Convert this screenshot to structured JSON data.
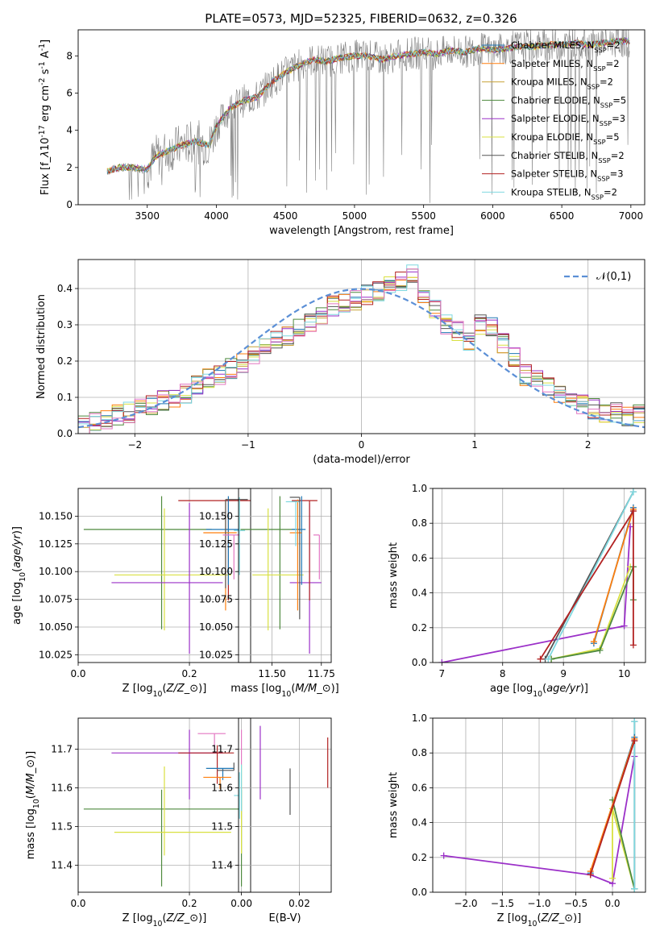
{
  "chart_data": [
    {
      "id": "spectrum",
      "type": "line",
      "title": "PLATE=0573, MJD=52325, FIBERID=0632, z=0.326",
      "xlabel": "wavelength [Angstrom, rest frame]",
      "ylabel": "Flux [f$_\\lambda$10$^{-17}$ erg cm$^{-2}$ s$^{-1}$ A$^{-1}$]",
      "xlim": [
        3000,
        7100
      ],
      "ylim": [
        0,
        9.4
      ],
      "xticks": [
        3500,
        4000,
        4500,
        5000,
        5500,
        6000,
        6500,
        7000
      ],
      "yticks": [
        0,
        2,
        4,
        6,
        8
      ],
      "grid": false,
      "legend_position": "top-right",
      "legend": [
        {
          "name": "Chabrier MILES, N$_{SSP}$=2",
          "color": "#1f77b4"
        },
        {
          "name": "Salpeter MILES, N$_{SSP}$=2",
          "color": "#ff7f0e"
        },
        {
          "name": "Kroupa MILES, N$_{SSP}$=2",
          "color": "#c8a23a"
        },
        {
          "name": "Chabrier ELODIE, N$_{SSP}$=5",
          "color": "#4e8a3e"
        },
        {
          "name": "Salpeter ELODIE, N$_{SSP}$=3",
          "color": "#9b30c8"
        },
        {
          "name": "Kroupa ELODIE, N$_{SSP}$=5",
          "color": "#d8e040"
        },
        {
          "name": "Chabrier STELIB, N$_{SSP}$=2",
          "color": "#555555"
        },
        {
          "name": "Salpeter STELIB, N$_{SSP}$=3",
          "color": "#b22222"
        },
        {
          "name": "Kroupa STELIB, N$_{SSP}$=2",
          "color": "#7fd8e0"
        }
      ],
      "observed_color": "#808080",
      "model_points": [
        [
          3210,
          1.8
        ],
        [
          3300,
          2.0
        ],
        [
          3400,
          2.0
        ],
        [
          3500,
          1.9
        ],
        [
          3560,
          2.6
        ],
        [
          3650,
          2.9
        ],
        [
          3750,
          3.2
        ],
        [
          3850,
          3.4
        ],
        [
          3950,
          3.2
        ],
        [
          4000,
          4.2
        ],
        [
          4100,
          5.2
        ],
        [
          4200,
          5.6
        ],
        [
          4300,
          5.8
        ],
        [
          4400,
          6.6
        ],
        [
          4500,
          7.1
        ],
        [
          4600,
          7.5
        ],
        [
          4700,
          7.8
        ],
        [
          4800,
          7.7
        ],
        [
          4900,
          7.9
        ],
        [
          5000,
          8.0
        ],
        [
          5100,
          8.0
        ],
        [
          5200,
          7.8
        ],
        [
          5300,
          8.0
        ],
        [
          5400,
          8.1
        ],
        [
          5500,
          8.2
        ],
        [
          5600,
          8.1
        ],
        [
          5700,
          8.3
        ],
        [
          5800,
          8.2
        ],
        [
          5900,
          8.4
        ],
        [
          6000,
          8.3
        ],
        [
          6100,
          8.4
        ],
        [
          6200,
          8.5
        ],
        [
          6300,
          8.5
        ],
        [
          6400,
          8.6
        ],
        [
          6500,
          8.6
        ],
        [
          6600,
          8.7
        ],
        [
          6700,
          8.6
        ],
        [
          6800,
          8.7
        ],
        [
          6900,
          8.8
        ],
        [
          6990,
          8.8
        ]
      ]
    },
    {
      "id": "residuals",
      "type": "histogram",
      "xlabel": "(data-model)/error",
      "ylabel": "Normed distribution",
      "xlim": [
        -2.5,
        2.5
      ],
      "ylim": [
        0,
        0.48
      ],
      "xticks": [
        -2,
        -1,
        0,
        1,
        2
      ],
      "yticks": [
        0.0,
        0.1,
        0.2,
        0.3,
        0.4
      ],
      "grid": true,
      "legend_position": "top-right",
      "legend": [
        {
          "name": "$\\mathcal{N}(0,1)$",
          "color": "#5b8fd6"
        }
      ],
      "bin_edges_range": [
        -2.5,
        2.5
      ],
      "bins": 50,
      "histogram_values": [
        0.02,
        0.03,
        0.04,
        0.05,
        0.06,
        0.07,
        0.08,
        0.09,
        0.1,
        0.11,
        0.13,
        0.15,
        0.16,
        0.18,
        0.19,
        0.22,
        0.24,
        0.26,
        0.27,
        0.29,
        0.31,
        0.33,
        0.35,
        0.36,
        0.37,
        0.38,
        0.39,
        0.41,
        0.42,
        0.44,
        0.38,
        0.34,
        0.3,
        0.28,
        0.26,
        0.3,
        0.29,
        0.25,
        0.21,
        0.16,
        0.15,
        0.13,
        0.11,
        0.09,
        0.08,
        0.07,
        0.06,
        0.06,
        0.05,
        0.05
      ]
    },
    {
      "id": "age-vs-Z",
      "type": "errorbar",
      "xlabel": "Z [log$_{10}$($Z/Z_\\odot$)]",
      "ylabel": "age  [log$_{10}$($age/yr$)]",
      "xlim": [
        0.0,
        0.31
      ],
      "ylim": [
        10.018,
        10.175
      ],
      "xticks": [
        0.0,
        0.2
      ],
      "yticks": [
        10.025,
        10.05,
        10.075,
        10.1,
        10.125,
        10.15
      ],
      "grid": true,
      "points": [
        {
          "x": 0.15,
          "y": 10.138,
          "xerr": [
            0.14,
            0.09
          ],
          "yerr": [
            0.09,
            0.03
          ],
          "color": "#4e8a3e"
        },
        {
          "x": 0.155,
          "y": 10.097,
          "xerr": [
            0.09,
            0.12
          ],
          "yerr": [
            0.05,
            0.06
          ],
          "color": "#d8e040"
        },
        {
          "x": 0.2,
          "y": 10.09,
          "xerr": [
            0.14,
            0.06
          ],
          "yerr": [
            0.064,
            0.072
          ],
          "color": "#9b30c8"
        },
        {
          "x": 0.27,
          "y": 10.164,
          "xerr": [
            0.09,
            0.04
          ],
          "yerr": [
            0.09,
            0.0
          ],
          "color": "#b22222"
        },
        {
          "x": 0.27,
          "y": 10.138,
          "xerr": [
            0.04,
            0.02
          ],
          "yerr": [
            0.05,
            0.03
          ],
          "color": "#1f77b4"
        },
        {
          "x": 0.265,
          "y": 10.135,
          "xerr": [
            0.04,
            0.02
          ],
          "yerr": [
            0.07,
            0.03
          ],
          "color": "#ff7f0e"
        },
        {
          "x": 0.29,
          "y": 10.137,
          "xerr": [
            0.01,
            0.01
          ],
          "yerr": [
            0.04,
            0.03
          ],
          "color": "#7fd8e0"
        },
        {
          "x": 0.265,
          "y": 10.165,
          "xerr": [
            0.0,
            0.04
          ],
          "yerr": [
            0.08,
            0.0
          ],
          "color": "#555555"
        },
        {
          "x": 0.28,
          "y": 10.133,
          "xerr": [
            0.02,
            0.01
          ],
          "yerr": [
            0.04,
            0.0
          ],
          "color": "#e377c2"
        }
      ]
    },
    {
      "id": "age-vs-mass",
      "type": "errorbar",
      "xlabel": "mass [log$_{10}$($M/M_\\odot$)]",
      "ylabel": "",
      "xlim": [
        11.33,
        11.8
      ],
      "ylim": [
        10.018,
        10.175
      ],
      "xticks": [
        11.5,
        11.75
      ],
      "yticks": [
        10.025,
        10.05,
        10.075,
        10.1,
        10.125,
        10.15
      ],
      "grid": true,
      "points": [
        {
          "x": 11.54,
          "y": 10.138,
          "xerr": [
            0.2,
            0.1
          ],
          "yerr": [
            0.09,
            0.03
          ],
          "color": "#4e8a3e"
        },
        {
          "x": 11.48,
          "y": 10.097,
          "xerr": [
            0.08,
            0.18
          ],
          "yerr": [
            0.05,
            0.06
          ],
          "color": "#d8e040"
        },
        {
          "x": 11.69,
          "y": 10.09,
          "xerr": [
            0.1,
            0.06
          ],
          "yerr": [
            0.064,
            0.072
          ],
          "color": "#9b30c8"
        },
        {
          "x": 11.69,
          "y": 10.164,
          "xerr": [
            0.09,
            0.04
          ],
          "yerr": [
            0.09,
            0.0
          ],
          "color": "#b22222"
        },
        {
          "x": 11.65,
          "y": 10.138,
          "xerr": [
            0.05,
            0.02
          ],
          "yerr": [
            0.05,
            0.03
          ],
          "color": "#1f77b4"
        },
        {
          "x": 11.63,
          "y": 10.135,
          "xerr": [
            0.04,
            0.02
          ],
          "yerr": [
            0.07,
            0.03
          ],
          "color": "#ff7f0e"
        },
        {
          "x": 11.62,
          "y": 10.163,
          "xerr": [
            0.05,
            0.02
          ],
          "yerr": [
            0.04,
            0.0
          ],
          "color": "#7fd8e0"
        },
        {
          "x": 11.64,
          "y": 10.167,
          "xerr": [
            0.05,
            0.0
          ],
          "yerr": [
            0.11,
            0.0
          ],
          "color": "#555555"
        },
        {
          "x": 11.74,
          "y": 10.133,
          "xerr": [
            0.03,
            0.0
          ],
          "yerr": [
            0.04,
            0.0
          ],
          "color": "#e377c2"
        }
      ]
    },
    {
      "id": "massweight-vs-age",
      "type": "line",
      "xlabel": "age  [log$_{10}$($age/yr$)]",
      "ylabel": "mass weight",
      "xlim": [
        6.85,
        10.35
      ],
      "ylim": [
        0.0,
        1.0
      ],
      "xticks": [
        7,
        8,
        9,
        10
      ],
      "yticks": [
        0.0,
        0.2,
        0.4,
        0.6,
        0.8,
        1.0
      ],
      "grid": true,
      "series": [
        {
          "color": "#9b30c8",
          "points": [
            [
              7.0,
              0.0
            ],
            [
              10.0,
              0.21
            ],
            [
              10.1,
              0.78
            ]
          ]
        },
        {
          "color": "#d8e040",
          "points": [
            [
              8.8,
              0.02
            ],
            [
              9.6,
              0.08
            ],
            [
              10.1,
              0.55
            ]
          ]
        },
        {
          "color": "#4e8a3e",
          "points": [
            [
              8.8,
              0.02
            ],
            [
              9.6,
              0.07
            ],
            [
              10.15,
              0.55
            ],
            [
              10.15,
              0.36
            ]
          ]
        },
        {
          "color": "#555555",
          "points": [
            [
              8.7,
              0.02
            ],
            [
              10.15,
              0.98
            ]
          ]
        },
        {
          "color": "#7fd8e0",
          "points": [
            [
              8.75,
              0.02
            ],
            [
              10.15,
              0.98
            ]
          ]
        },
        {
          "color": "#1f77b4",
          "points": [
            [
              9.5,
              0.11
            ],
            [
              10.15,
              0.89
            ]
          ]
        },
        {
          "color": "#ff7f0e",
          "points": [
            [
              9.5,
              0.12
            ],
            [
              10.15,
              0.88
            ]
          ]
        },
        {
          "color": "#b22222",
          "points": [
            [
              8.62,
              0.02
            ],
            [
              10.15,
              0.87
            ],
            [
              10.15,
              0.1
            ]
          ]
        }
      ]
    },
    {
      "id": "mass-vs-Z",
      "type": "errorbar",
      "xlabel": "Z [log$_{10}$($Z/Z_\\odot$)]",
      "ylabel": "mass [log$_{10}$($M/M_\\odot$)]",
      "xlim": [
        0.0,
        0.31
      ],
      "ylim": [
        11.33,
        11.78
      ],
      "xticks": [
        0.0,
        0.2
      ],
      "yticks": [
        11.4,
        11.5,
        11.6,
        11.7
      ],
      "grid": true,
      "points": [
        {
          "x": 0.15,
          "y": 11.545,
          "xerr": [
            0.14,
            0.14
          ],
          "yerr": [
            0.2,
            0.05
          ],
          "color": "#4e8a3e"
        },
        {
          "x": 0.155,
          "y": 11.485,
          "xerr": [
            0.09,
            0.12
          ],
          "yerr": [
            0.06,
            0.17
          ],
          "color": "#d8e040"
        },
        {
          "x": 0.2,
          "y": 11.69,
          "xerr": [
            0.14,
            0.06
          ],
          "yerr": [
            0.12,
            0.06
          ],
          "color": "#9b30c8"
        },
        {
          "x": 0.25,
          "y": 11.69,
          "xerr": [
            0.07,
            0.03
          ],
          "yerr": [
            0.08,
            0.02
          ],
          "color": "#b22222"
        },
        {
          "x": 0.26,
          "y": 11.65,
          "xerr": [
            0.03,
            0.02
          ],
          "yerr": [
            0.03,
            0.0
          ],
          "color": "#1f77b4"
        },
        {
          "x": 0.255,
          "y": 11.627,
          "xerr": [
            0.03,
            0.02
          ],
          "yerr": [
            0.03,
            0.0
          ],
          "color": "#ff7f0e"
        },
        {
          "x": 0.29,
          "y": 11.58,
          "xerr": [
            0.01,
            0.0
          ],
          "yerr": [
            0.06,
            0.06
          ],
          "color": "#7fd8e0"
        },
        {
          "x": 0.28,
          "y": 11.645,
          "xerr": [
            0.03,
            0.0
          ],
          "yerr": [
            0.0,
            0.02
          ],
          "color": "#555555"
        },
        {
          "x": 0.245,
          "y": 11.74,
          "xerr": [
            0.03,
            0.02
          ],
          "yerr": [
            0.04,
            0.0
          ],
          "color": "#e377c2"
        }
      ]
    },
    {
      "id": "mass-vs-EBV",
      "type": "errorbar",
      "xlabel": "E(B-V)",
      "ylabel": "",
      "xlim": [
        -0.001,
        0.031
      ],
      "ylim": [
        11.33,
        11.78
      ],
      "xticks": [
        0.0,
        0.02
      ],
      "yticks": [
        11.4,
        11.5,
        11.6,
        11.7
      ],
      "grid": true,
      "points": [
        {
          "x": 0.0,
          "y": 11.545,
          "xerr": [
            0,
            0
          ],
          "yerr": [
            0.2,
            0.05
          ],
          "color": "#4e8a3e"
        },
        {
          "x": 0.0,
          "y": 11.53,
          "xerr": [
            0,
            0
          ],
          "yerr": [
            0.1,
            0.13
          ],
          "color": "#d8e040"
        },
        {
          "x": 0.0,
          "y": 11.7,
          "xerr": [
            0,
            0
          ],
          "yerr": [
            0.04,
            0.05
          ],
          "color": "#e377c2"
        },
        {
          "x": 0.0,
          "y": 11.6,
          "xerr": [
            0,
            0
          ],
          "yerr": [
            0.06,
            0.06
          ],
          "color": "#7fd8e0"
        },
        {
          "x": 0.0065,
          "y": 11.67,
          "xerr": [
            0,
            0
          ],
          "yerr": [
            0.1,
            0.09
          ],
          "color": "#9b30c8"
        },
        {
          "x": 0.0168,
          "y": 11.59,
          "xerr": [
            0,
            0
          ],
          "yerr": [
            0.06,
            0.06
          ],
          "color": "#555555"
        },
        {
          "x": 0.0298,
          "y": 11.66,
          "xerr": [
            0,
            0
          ],
          "yerr": [
            0.06,
            0.07
          ],
          "color": "#b22222"
        }
      ]
    },
    {
      "id": "massweight-vs-Z",
      "type": "line",
      "xlabel": "Z [log$_{10}$($Z/Z_\\odot$)]",
      "ylabel": "mass weight",
      "xlim": [
        -2.45,
        0.45
      ],
      "ylim": [
        0.0,
        1.0
      ],
      "xticks": [
        -2.0,
        -1.5,
        -1.0,
        -0.5,
        0.0
      ],
      "yticks": [
        0.0,
        0.2,
        0.4,
        0.6,
        0.8,
        1.0
      ],
      "grid": true,
      "series": [
        {
          "color": "#9b30c8",
          "points": [
            [
              -2.3,
              0.21
            ],
            [
              -0.3,
              0.1
            ],
            [
              0.0,
              0.05
            ],
            [
              0.3,
              0.78
            ]
          ]
        },
        {
          "color": "#d8e040",
          "points": [
            [
              0.0,
              0.08
            ],
            [
              0.0,
              0.48
            ],
            [
              0.3,
              0.02
            ]
          ]
        },
        {
          "color": "#4e8a3e",
          "points": [
            [
              0.0,
              0.53
            ],
            [
              0.3,
              0.02
            ]
          ]
        },
        {
          "color": "#555555",
          "points": [
            [
              0.3,
              0.02
            ],
            [
              0.3,
              0.98
            ]
          ]
        },
        {
          "color": "#7fd8e0",
          "points": [
            [
              0.3,
              0.02
            ],
            [
              0.3,
              0.98
            ]
          ]
        },
        {
          "color": "#1f77b4",
          "points": [
            [
              -0.3,
              0.11
            ],
            [
              0.3,
              0.89
            ]
          ]
        },
        {
          "color": "#ff7f0e",
          "points": [
            [
              -0.3,
              0.12
            ],
            [
              0.3,
              0.88
            ]
          ]
        },
        {
          "color": "#b22222",
          "points": [
            [
              -0.3,
              0.1
            ],
            [
              0.3,
              0.87
            ]
          ]
        }
      ]
    }
  ]
}
